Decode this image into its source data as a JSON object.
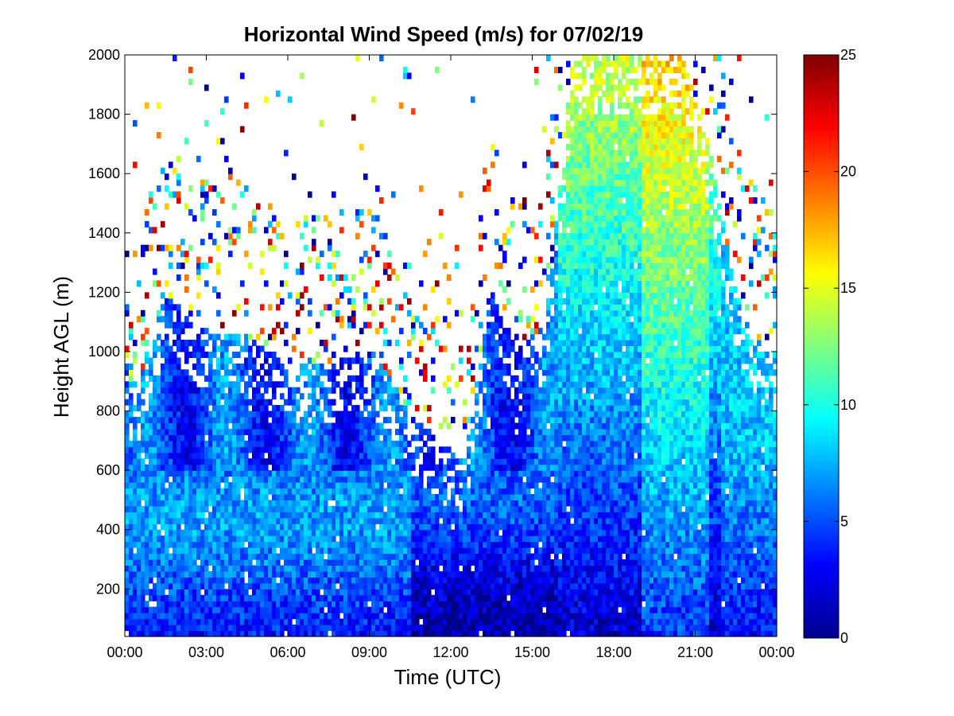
{
  "chart_data": {
    "type": "heatmap",
    "title": "Horizontal Wind Speed (m/s) for 07/02/19",
    "xlabel": "Time (UTC)",
    "ylabel": "Height AGL (m)",
    "x_ticks": [
      "00:00",
      "03:00",
      "06:00",
      "09:00",
      "12:00",
      "15:00",
      "18:00",
      "21:00",
      "00:00"
    ],
    "x_range_hours": [
      0,
      24
    ],
    "y_ticks": [
      200,
      400,
      600,
      800,
      1000,
      1200,
      1400,
      1600,
      1800,
      2000
    ],
    "y_range": [
      40,
      2000
    ],
    "colorbar": {
      "ticks": [
        0,
        5,
        10,
        15,
        20,
        25
      ],
      "range": [
        0,
        25
      ],
      "colormap": "jet"
    },
    "grid": false,
    "profile_data_top_m": [
      [
        0.5,
        900
      ],
      [
        1.5,
        1200
      ],
      [
        2.5,
        1100
      ],
      [
        3.5,
        1050
      ],
      [
        4.5,
        1050
      ],
      [
        5.5,
        1000
      ],
      [
        6.5,
        950
      ],
      [
        7.5,
        950
      ],
      [
        8.5,
        1000
      ],
      [
        9.5,
        950
      ],
      [
        10.5,
        800
      ],
      [
        11.5,
        700
      ],
      [
        12.5,
        650
      ],
      [
        13.5,
        1200
      ],
      [
        14.5,
        1000
      ],
      [
        15.5,
        1100
      ],
      [
        16.5,
        2000
      ],
      [
        17.5,
        2000
      ],
      [
        18.5,
        2000
      ],
      [
        19.5,
        2000
      ],
      [
        20.5,
        2000
      ],
      [
        21.5,
        1700
      ],
      [
        22.5,
        1200
      ],
      [
        23.5,
        1000
      ]
    ],
    "wind_speed_profiles_ms": [
      {
        "hour": 1.5,
        "speed_at_200m": 5,
        "speed_at_600m": 7,
        "speed_at_1000m": 9
      },
      {
        "hour": 4.5,
        "speed_at_200m": 7,
        "speed_at_600m": 8,
        "speed_at_1000m": 7
      },
      {
        "hour": 9.5,
        "speed_at_200m": 5,
        "speed_at_600m": 8,
        "speed_at_1000m": 6
      },
      {
        "hour": 14.5,
        "speed_at_200m": 1,
        "speed_at_600m": 4,
        "speed_at_1000m": 6
      },
      {
        "hour": 17.5,
        "speed_at_200m": 2,
        "speed_at_600m": 6,
        "speed_at_1000m": 10,
        "speed_at_1600m": 11
      },
      {
        "hour": 20.0,
        "speed_at_200m": 2,
        "speed_at_600m": 7,
        "speed_at_1000m": 12,
        "speed_at_1400m": 14
      },
      {
        "hour": 23.0,
        "speed_at_200m": 4,
        "speed_at_600m": 8,
        "speed_at_1000m": 7
      }
    ]
  }
}
